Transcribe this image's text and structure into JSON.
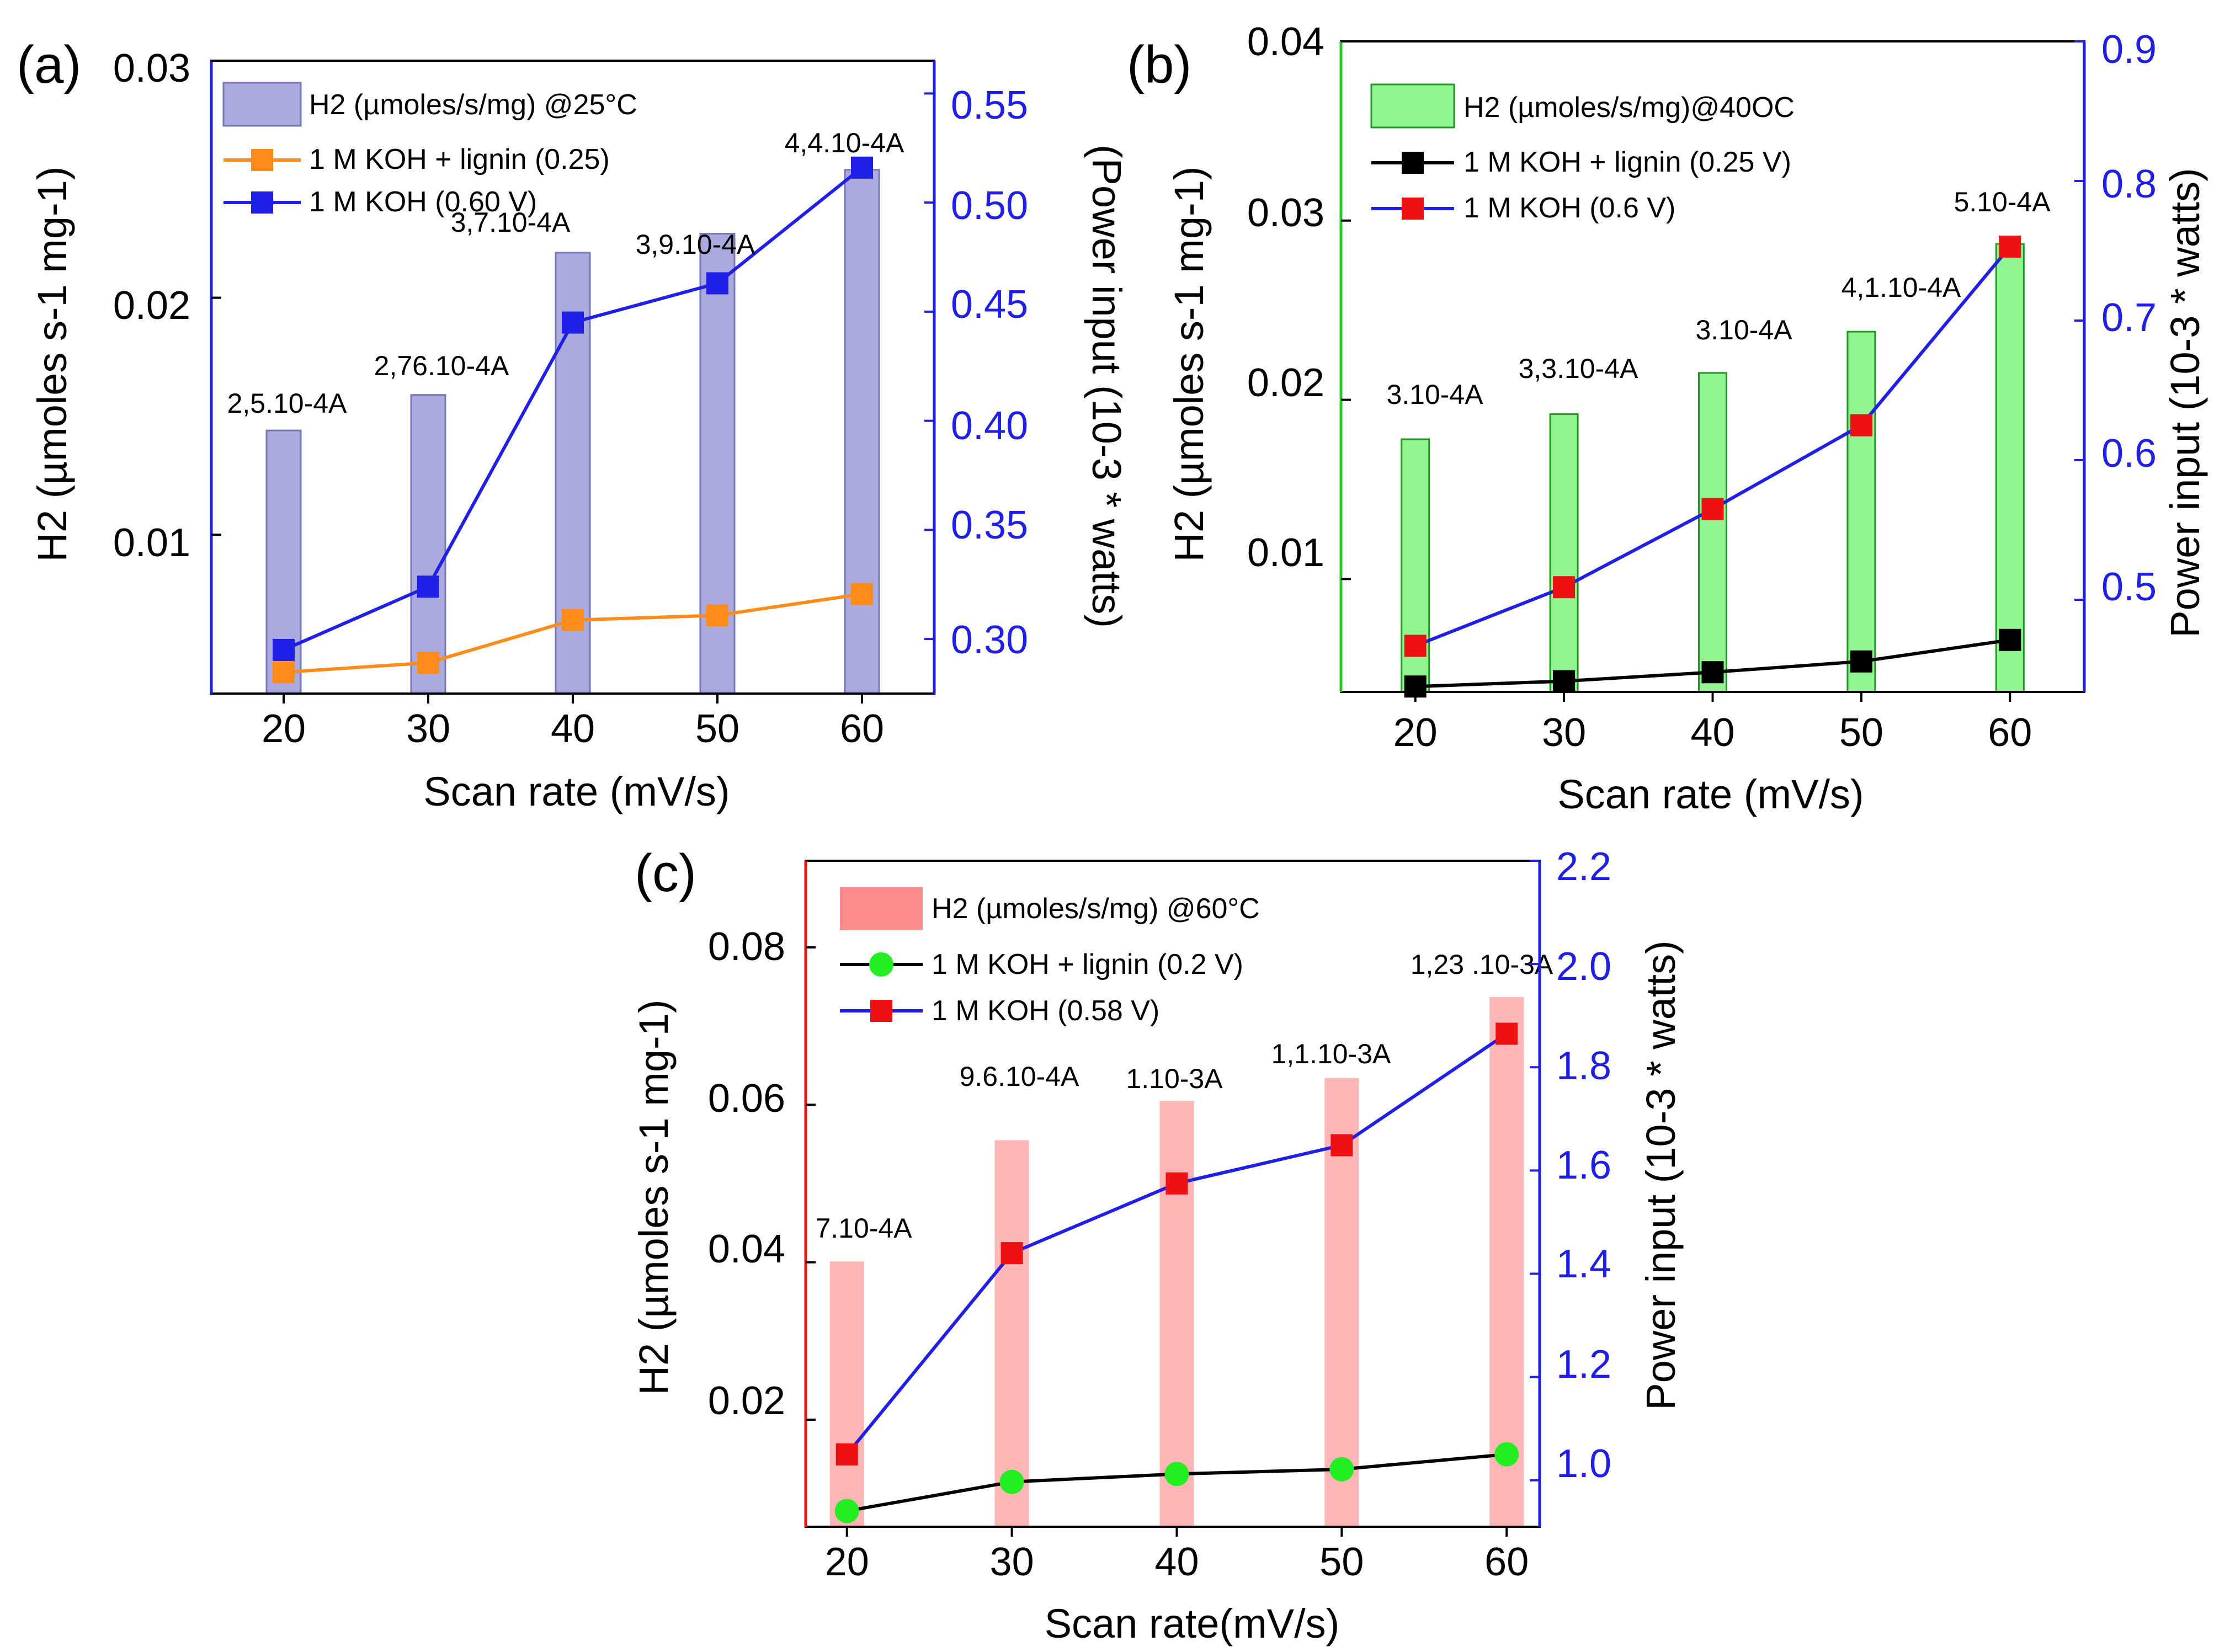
{
  "chart_data": [
    {
      "panel": "(a)",
      "type": "bar+line",
      "xlabel": "Scan rate (mV/s)",
      "ylabel": "H2 (µmoles s-1 mg-1)",
      "y2label": "(Power input (10-3 * watts)",
      "x": [
        20,
        30,
        40,
        50,
        60
      ],
      "xlim": [
        15,
        65
      ],
      "ylim": [
        0.0033,
        0.03
      ],
      "y2lim": [
        0.275,
        0.565
      ],
      "yticks": [
        "0.01",
        "0.02",
        "0.03"
      ],
      "y2ticks": [
        "0.30",
        "0.35",
        "0.40",
        "0.45",
        "0.50",
        "0.55"
      ],
      "bars": {
        "name": "H2 (µmoles/s/mg) @25°C",
        "color": "#aaaadf",
        "values": [
          0.0144,
          0.0159,
          0.0219,
          0.0227,
          0.0254
        ]
      },
      "series": [
        {
          "name": "1 M KOH + lignin (0.25)",
          "color": "#ff8c1a",
          "marker": "square",
          "axis": "left",
          "values": [
            0.0042,
            0.0046,
            0.0064,
            0.0066,
            0.0075
          ]
        },
        {
          "name": "1 M KOH (0.60 V)",
          "color": "#1f1fe6",
          "marker": "square",
          "axis": "right",
          "values": [
            0.295,
            0.324,
            0.445,
            0.463,
            0.516
          ]
        }
      ],
      "annotations": [
        "2,5.10-4A",
        "2,76.10-4A",
        "3,7.10-4A",
        "3,9.10-4A",
        "4,4.10-4A"
      ],
      "legend_position": "top-left"
    },
    {
      "panel": "(b)",
      "type": "bar+line",
      "xlabel": "Scan rate (mV/s)",
      "ylabel": "H2 (µmoles s-1 mg-1)",
      "y2label": "Power input (10-3 * watts)",
      "x": [
        20,
        30,
        40,
        50,
        60
      ],
      "xlim": [
        15,
        65
      ],
      "ylim": [
        0.0037,
        0.04
      ],
      "y2lim": [
        0.434,
        0.9
      ],
      "yticks": [
        "0.01",
        "0.02",
        "0.03",
        "0.04"
      ],
      "y2ticks": [
        "0.5",
        "0.6",
        "0.7",
        "0.8",
        "0.9"
      ],
      "bars": {
        "name": "H2 (µmoles/s/mg)@40OC",
        "color": "#90f590",
        "values": [
          0.0178,
          0.0192,
          0.0215,
          0.0238,
          0.0287
        ]
      },
      "series": [
        {
          "name": "1 M KOH + lignin (0.25 V)",
          "color": "#000000",
          "marker": "square",
          "axis": "left",
          "values": [
            0.004,
            0.0043,
            0.0048,
            0.0054,
            0.0066
          ]
        },
        {
          "name": "1 M KOH (0.6 V)",
          "color": "#1f1fe6",
          "markercolor": "#ee1111",
          "marker": "square",
          "axis": "right",
          "values": [
            0.467,
            0.509,
            0.565,
            0.625,
            0.753
          ]
        }
      ],
      "annotations": [
        "3.10-4A",
        "3,3.10-4A",
        "3.10-4A",
        "4,1.10-4A",
        "5.10-4A"
      ],
      "legend_position": "top-left"
    },
    {
      "panel": "(c)",
      "type": "bar+line",
      "xlabel": "Scan rate(mV/s)",
      "ylabel": "H2 (µmoles s-1 mg-1)",
      "y2label": "Power input (10-3 * watts)",
      "x": [
        20,
        30,
        40,
        50,
        60
      ],
      "xlim": [
        17.5,
        62.0
      ],
      "ylim": [
        0.0064,
        0.091
      ],
      "y2lim": [
        0.91,
        2.2
      ],
      "yticks": [
        "0.02",
        "0.04",
        "0.06",
        "0.08"
      ],
      "y2ticks": [
        "1.0",
        "1.2",
        "1.4",
        "1.6",
        "1.8",
        "2.0",
        "2.2"
      ],
      "bars": {
        "name": "H2 (µmoles/s/mg) @60°C",
        "color": "#ffb6b6",
        "values": [
          0.0401,
          0.0555,
          0.0605,
          0.0634,
          0.0737
        ]
      },
      "series": [
        {
          "name": "1 M KOH + lignin (0.2 V)",
          "color": "#000000",
          "markercolor": "#22ee22",
          "marker": "circle",
          "axis": "left",
          "values": [
            0.0084,
            0.0121,
            0.0131,
            0.0137,
            0.0156
          ]
        },
        {
          "name": "1 M KOH (0.58 V)",
          "color": "#1f1fe6",
          "markercolor": "#ee1111",
          "marker": "square",
          "axis": "right",
          "values": [
            1.05,
            1.44,
            1.575,
            1.649,
            1.865
          ]
        }
      ],
      "annotations": [
        "7.10-4A",
        "9.6.10-4A",
        "1.10-3A",
        "1,1.10-3A",
        "1,23 .10-3A"
      ],
      "legend_position": "top-left"
    }
  ]
}
